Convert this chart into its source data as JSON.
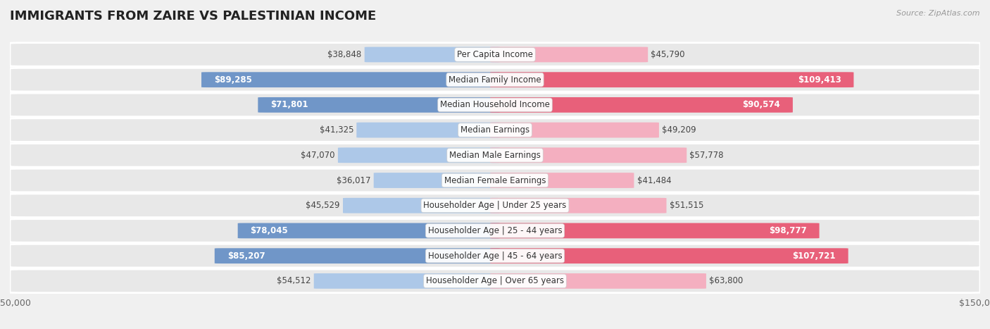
{
  "title": "IMMIGRANTS FROM ZAIRE VS PALESTINIAN INCOME",
  "source": "Source: ZipAtlas.com",
  "categories": [
    "Per Capita Income",
    "Median Family Income",
    "Median Household Income",
    "Median Earnings",
    "Median Male Earnings",
    "Median Female Earnings",
    "Householder Age | Under 25 years",
    "Householder Age | 25 - 44 years",
    "Householder Age | 45 - 64 years",
    "Householder Age | Over 65 years"
  ],
  "zaire_values": [
    38848,
    89285,
    71801,
    41325,
    47070,
    36017,
    45529,
    78045,
    85207,
    54512
  ],
  "palestinian_values": [
    45790,
    109413,
    90574,
    49209,
    57778,
    41484,
    51515,
    98777,
    107721,
    63800
  ],
  "zaire_labels": [
    "$38,848",
    "$89,285",
    "$71,801",
    "$41,325",
    "$47,070",
    "$36,017",
    "$45,529",
    "$78,045",
    "$85,207",
    "$54,512"
  ],
  "palestinian_labels": [
    "$45,790",
    "$109,413",
    "$90,574",
    "$49,209",
    "$57,778",
    "$41,484",
    "$51,515",
    "$98,777",
    "$107,721",
    "$63,800"
  ],
  "zaire_color_light": "#adc8e8",
  "zaire_color_dark": "#7096c8",
  "palestinian_color_light": "#f4afc0",
  "palestinian_color_dark": "#e8607a",
  "highlight_threshold": 70000,
  "max_value": 150000,
  "bg_color": "#f0f0f0",
  "row_bg": "#e8e8e8",
  "row_border": "#ffffff",
  "label_fontsize": 8.5,
  "cat_fontsize": 8.5,
  "title_fontsize": 13,
  "source_fontsize": 8
}
